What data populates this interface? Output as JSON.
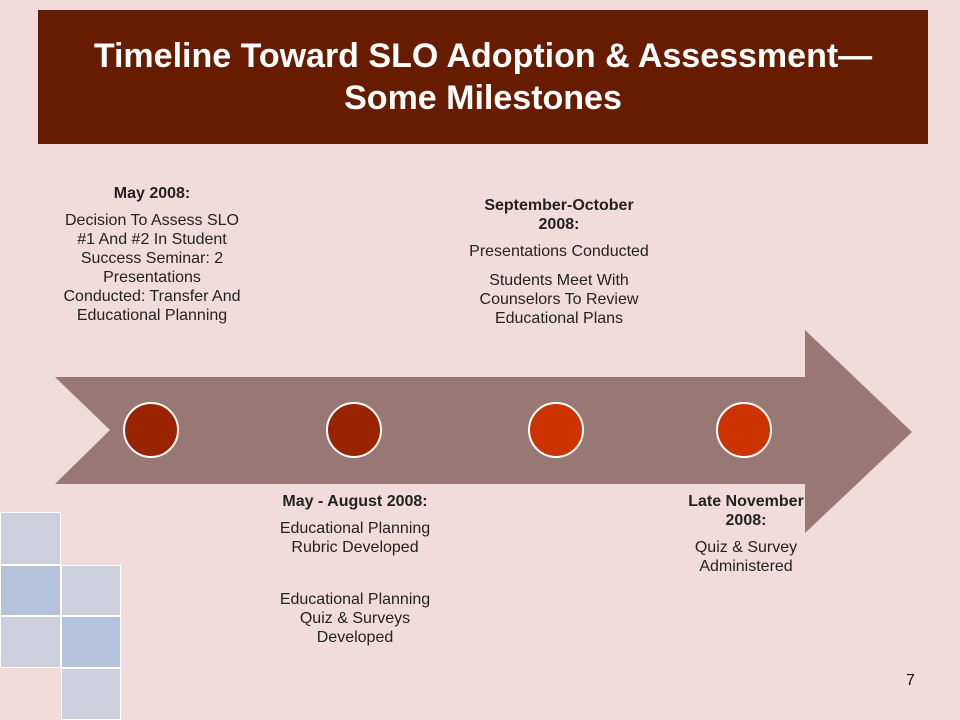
{
  "slide": {
    "title": "Timeline Toward SLO Adoption & Assessment— Some Milestones",
    "page_number": "7",
    "colors": {
      "background": "#f2dcdb",
      "title_bar": "#671c00",
      "arrow": "#987775",
      "circle_dark": "#9b2400",
      "circle_bright": "#cc3300"
    }
  },
  "milestones": [
    {
      "date": "May 2008:",
      "items": [
        "Decision To Assess SLO #1 And #2 In Student Success Seminar: 2 Presentations Conducted: Transfer And Educational Planning"
      ]
    },
    {
      "date": "May - August 2008:",
      "items": [
        "Educational Planning Rubric Developed",
        "Educational Planning Quiz & Surveys Developed"
      ]
    },
    {
      "date": "September-October 2008:",
      "items": [
        "Presentations Conducted",
        "Students Meet With Counselors To Review Educational Plans"
      ]
    },
    {
      "date": "Late November 2008:",
      "items": [
        "Quiz & Survey Administered"
      ]
    }
  ]
}
